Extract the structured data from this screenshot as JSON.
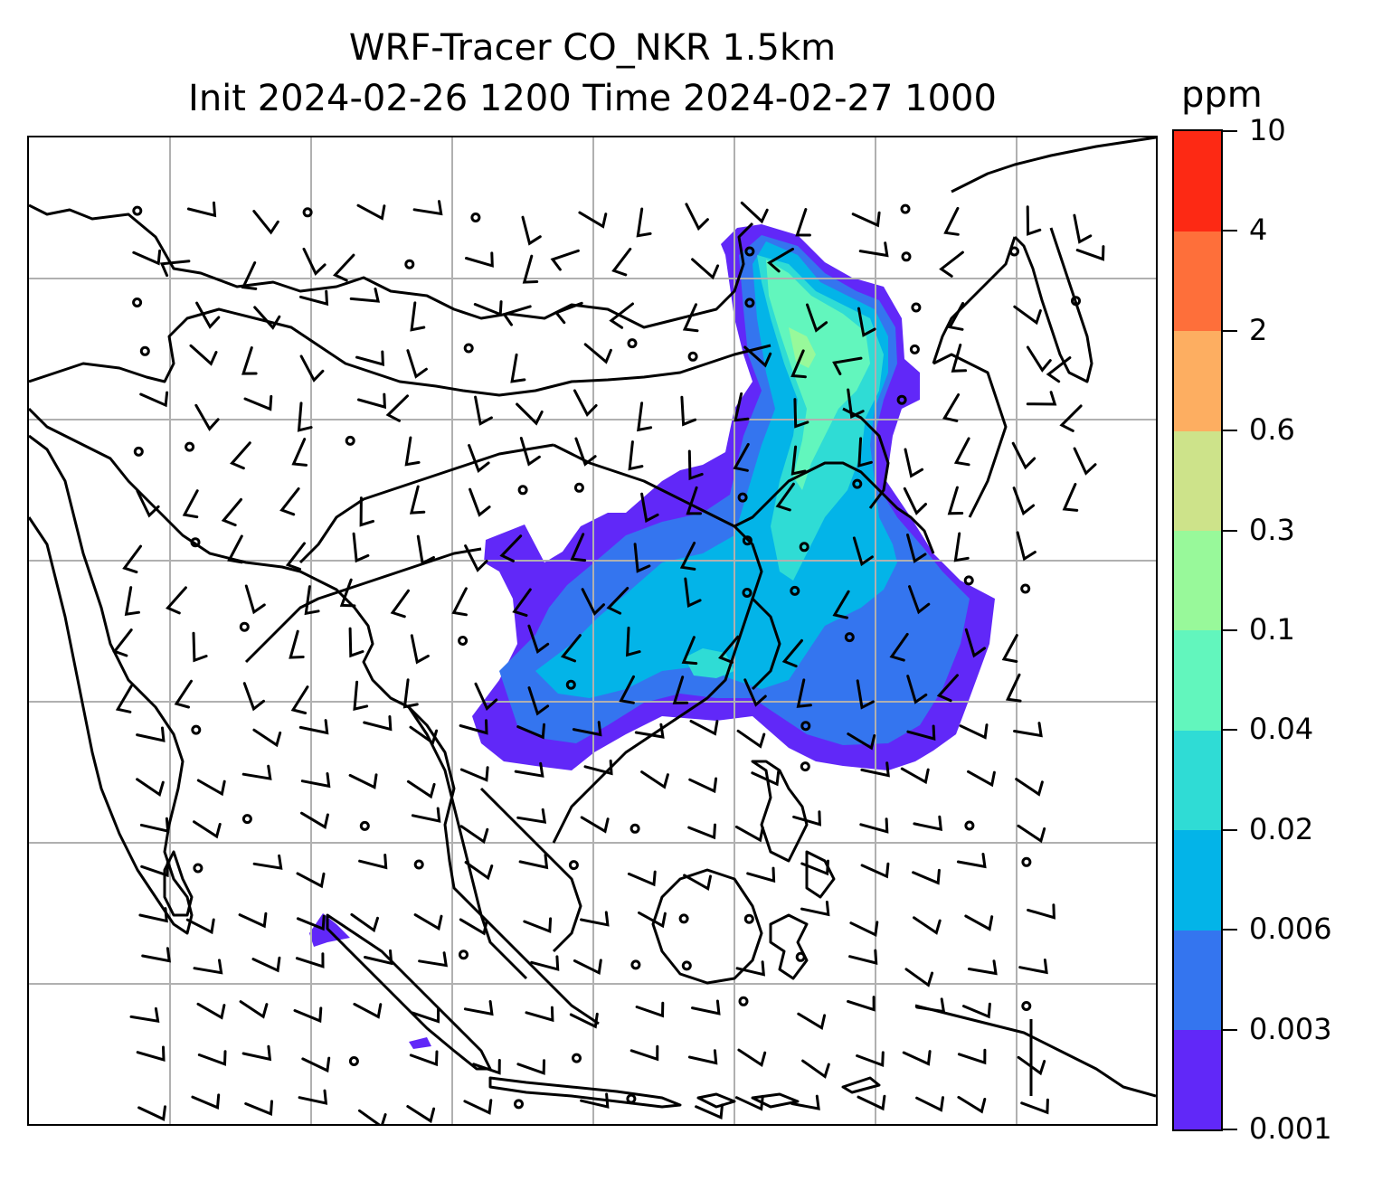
{
  "title": {
    "line1": "WRF-Tracer CO_NKR 1.5km",
    "line2": "Init 2024-02-26 1200 Time 2024-02-27 1000"
  },
  "colorbar": {
    "unit": "ppm",
    "levels": [
      "0.001",
      "0.003",
      "0.006",
      "0.02",
      "0.04",
      "0.1",
      "0.3",
      "0.6",
      "2",
      "4",
      "10"
    ],
    "colors": [
      "#6128f8",
      "#3475ef",
      "#03b4e8",
      "#2fdcd5",
      "#62f6bd",
      "#98f99a",
      "#cde38a",
      "#fdae61",
      "#fe6f3a",
      "#fd2914"
    ]
  },
  "map": {
    "gridlines": true,
    "coastline_color": "#000000",
    "wind_barbs": true,
    "calm_markers": true
  }
}
